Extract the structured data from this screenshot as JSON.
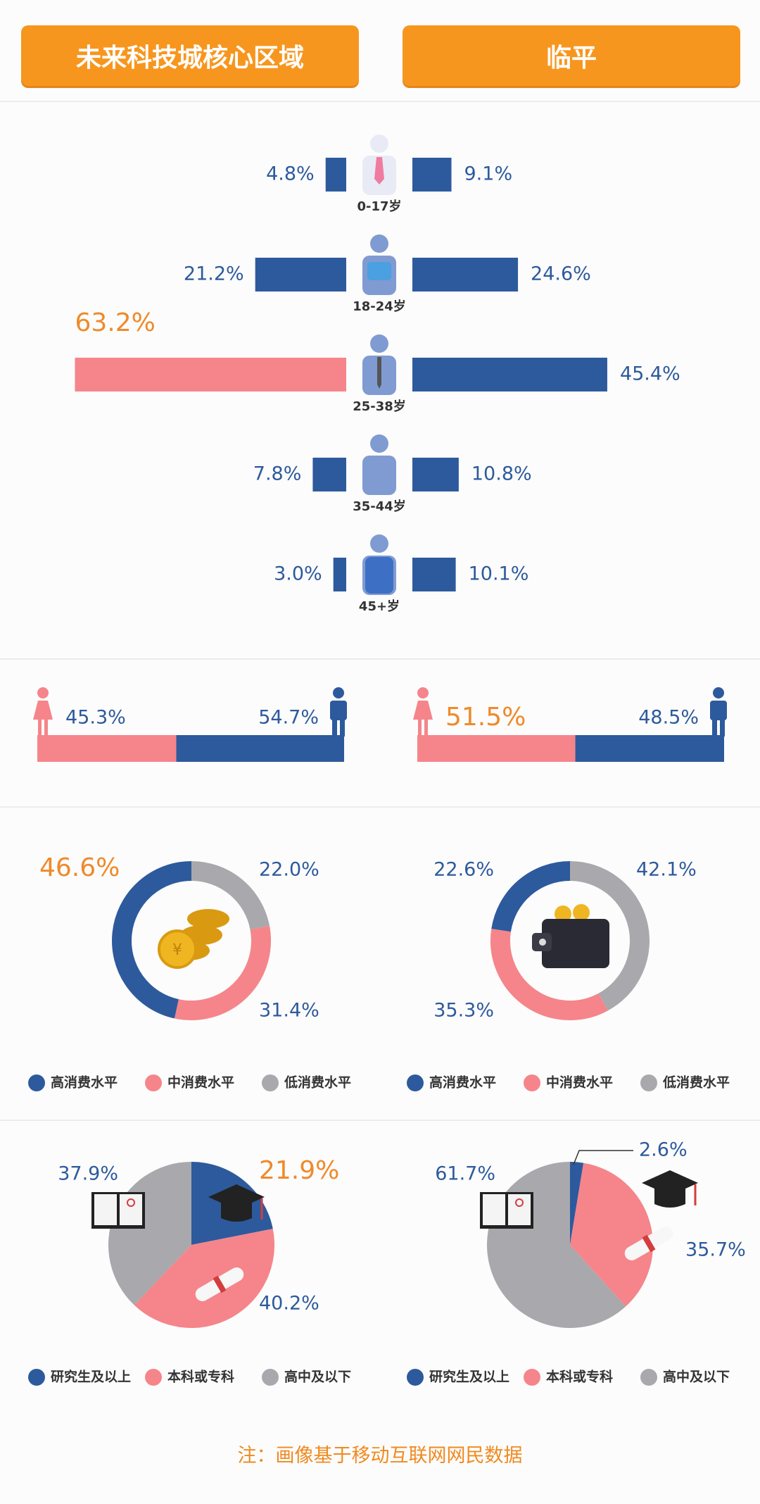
{
  "regions": {
    "left": "未来科技城核心区域",
    "right": "临平"
  },
  "colors": {
    "navy": "#2d5a9c",
    "pink": "#f5858a",
    "gray": "#a9a8ad",
    "orange": "#ef8a2a",
    "tab": "#f7961e",
    "icon_light": "#7f9bd2"
  },
  "chart_data": [
    {
      "type": "bar",
      "title": "",
      "categories": [
        "0-17岁",
        "18-24岁",
        "25-38岁",
        "35-44岁",
        "45+岁"
      ],
      "series": [
        {
          "name": "未来科技城核心区域",
          "values": [
            4.8,
            21.2,
            63.2,
            7.8,
            3.0
          ],
          "labels": [
            "4.8%",
            "21.2%",
            "63.2%",
            "7.8%",
            "3.0%"
          ]
        },
        {
          "name": "临平",
          "values": [
            9.1,
            24.6,
            45.4,
            10.8,
            10.1
          ],
          "labels": [
            "9.1%",
            "24.6%",
            "45.4%",
            "10.8%",
            "10.1%"
          ]
        }
      ],
      "highlight": {
        "series": 0,
        "index": 2
      }
    },
    {
      "type": "bar",
      "categories": [
        "女",
        "男"
      ],
      "series": [
        {
          "name": "未来科技城核心区域",
          "values": [
            45.3,
            54.7
          ],
          "labels": [
            "45.3%",
            "54.7%"
          ]
        },
        {
          "name": "临平",
          "values": [
            51.5,
            48.5
          ],
          "labels": [
            "51.5%",
            "48.5%"
          ]
        }
      ]
    },
    {
      "type": "pie",
      "variant": "donut",
      "categories": [
        "高消费水平",
        "中消费水平",
        "低消费水平"
      ],
      "series": [
        {
          "name": "未来科技城核心区域",
          "values": [
            46.6,
            31.4,
            22.0
          ],
          "labels": [
            "46.6%",
            "31.4%",
            "22.0%"
          ],
          "highlight": 0
        },
        {
          "name": "临平",
          "values": [
            22.6,
            35.3,
            42.1
          ],
          "labels": [
            "22.6%",
            "35.3%",
            "42.1%"
          ]
        }
      ]
    },
    {
      "type": "pie",
      "categories": [
        "研究生及以上",
        "本科或专科",
        "高中及以下"
      ],
      "series": [
        {
          "name": "未来科技城核心区域",
          "values": [
            21.9,
            40.2,
            37.9
          ],
          "labels": [
            "21.9%",
            "40.2%",
            "37.9%"
          ],
          "highlight": 0
        },
        {
          "name": "临平",
          "values": [
            2.6,
            35.7,
            61.7
          ],
          "labels": [
            "2.6%",
            "35.7%",
            "61.7%"
          ]
        }
      ]
    }
  ],
  "footer_note": "注：画像基于移动互联网网民数据"
}
